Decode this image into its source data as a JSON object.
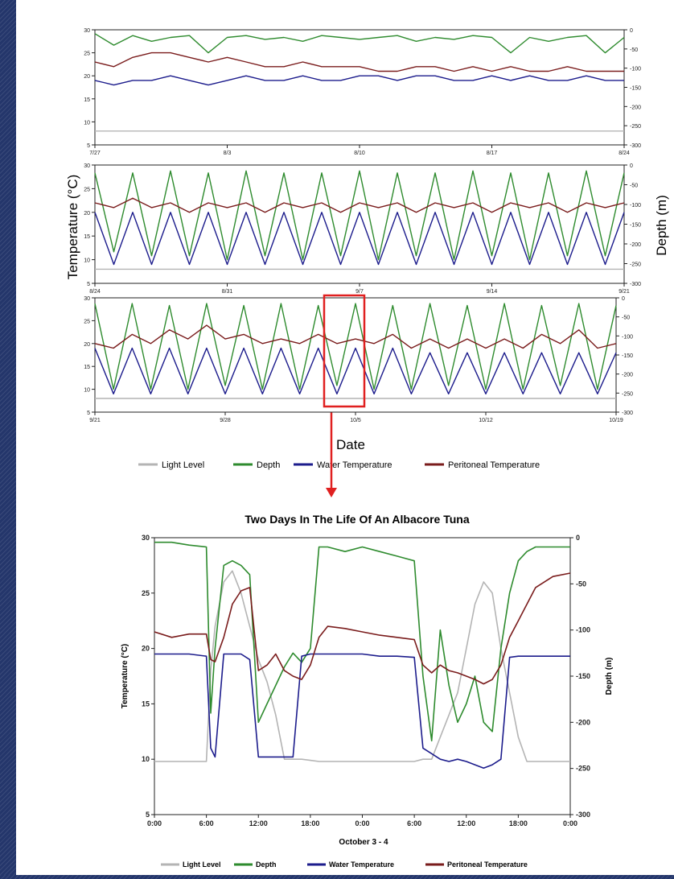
{
  "top_figure": {
    "y_left_label": "Temperature (°C)",
    "y_right_label": "Depth (m)",
    "x_label": "Date",
    "legend": [
      "Light Level",
      "Depth",
      "Water Temperature",
      "Peritoneal Temperature"
    ]
  },
  "bottom_figure": {
    "title": "Two Days In The Life Of An Albacore Tuna",
    "y_left_label": "Temperature (°C)",
    "y_right_label": "Depth (m)",
    "x_label": "October 3 - 4",
    "legend": [
      "Light Level",
      "Depth",
      "Water Temperature",
      "Peritoneal Temperature"
    ]
  },
  "colors": {
    "light": "#b4b4b4",
    "depth": "#2e8b2e",
    "water": "#1c1c8c",
    "peritoneal": "#7a1c1c",
    "highlight": "#e02020",
    "background": "#24366b"
  },
  "chart_data": [
    {
      "type": "line",
      "panel": 1,
      "x_ticks": [
        "7/27",
        "8/3",
        "8/10",
        "8/17",
        "8/24"
      ],
      "y_left_ticks": [
        5,
        10,
        15,
        20,
        25,
        30
      ],
      "y_right_ticks": [
        0,
        -50,
        -100,
        -150,
        -200,
        -250,
        -300
      ],
      "ylim_left": [
        5,
        30
      ],
      "ylim_right": [
        -300,
        0
      ],
      "series": [
        {
          "name": "Light Level",
          "values": [
            8,
            8,
            8,
            8,
            8,
            8,
            8,
            8,
            8,
            8,
            8,
            8,
            8,
            8,
            8,
            8,
            8,
            8,
            8,
            8,
            8,
            8,
            8,
            8,
            8,
            8,
            8,
            8,
            8
          ]
        },
        {
          "name": "Depth",
          "values": [
            -10,
            -40,
            -15,
            -30,
            -20,
            -15,
            -60,
            -20,
            -15,
            -25,
            -20,
            -30,
            -15,
            -20,
            -25,
            -20,
            -15,
            -30,
            -20,
            -25,
            -15,
            -20,
            -60,
            -20,
            -30,
            -20,
            -15,
            -60,
            -20
          ]
        },
        {
          "name": "Water Temperature",
          "values": [
            19,
            18,
            19,
            19,
            20,
            19,
            18,
            19,
            20,
            19,
            19,
            20,
            19,
            19,
            20,
            20,
            19,
            20,
            20,
            19,
            19,
            20,
            19,
            20,
            19,
            19,
            20,
            19,
            19
          ]
        },
        {
          "name": "Peritoneal Temperature",
          "values": [
            23,
            22,
            24,
            25,
            25,
            24,
            23,
            24,
            23,
            22,
            22,
            23,
            22,
            22,
            22,
            21,
            21,
            22,
            22,
            21,
            22,
            21,
            22,
            21,
            21,
            22,
            21,
            21,
            21
          ]
        }
      ]
    },
    {
      "type": "line",
      "panel": 2,
      "x_ticks": [
        "8/24",
        "8/31",
        "9/7",
        "9/14",
        "9/21"
      ],
      "y_left_ticks": [
        5,
        10,
        15,
        20,
        25,
        30
      ],
      "y_right_ticks": [
        0,
        -50,
        -100,
        -150,
        -200,
        -250,
        -300
      ],
      "ylim_left": [
        5,
        30
      ],
      "ylim_right": [
        -300,
        0
      ],
      "series": [
        {
          "name": "Light Level",
          "values": [
            8,
            8,
            8,
            8,
            8,
            8,
            8,
            8,
            8,
            8,
            8,
            8,
            8,
            8,
            8,
            8,
            8,
            8,
            8,
            8,
            8,
            8,
            8,
            8,
            8,
            8,
            8,
            8,
            8
          ]
        },
        {
          "name": "Depth",
          "values": [
            -20,
            -220,
            -20,
            -230,
            -15,
            -230,
            -20,
            -240,
            -15,
            -230,
            -20,
            -240,
            -20,
            -230,
            -15,
            -240,
            -20,
            -230,
            -20,
            -240,
            -15,
            -230,
            -20,
            -240,
            -20,
            -230,
            -15,
            -230,
            -20
          ]
        },
        {
          "name": "Water Temperature",
          "values": [
            20,
            9,
            20,
            9,
            20,
            9,
            20,
            9,
            20,
            9,
            20,
            9,
            20,
            9,
            20,
            9,
            20,
            9,
            20,
            9,
            20,
            9,
            20,
            9,
            20,
            9,
            20,
            9,
            20
          ]
        },
        {
          "name": "Peritoneal Temperature",
          "values": [
            22,
            21,
            23,
            21,
            22,
            20,
            22,
            21,
            22,
            20,
            22,
            21,
            22,
            20,
            22,
            21,
            22,
            20,
            22,
            21,
            22,
            20,
            22,
            21,
            22,
            20,
            22,
            21,
            22
          ]
        }
      ]
    },
    {
      "type": "line",
      "panel": 3,
      "x_ticks": [
        "9/21",
        "9/28",
        "10/5",
        "10/12",
        "10/19"
      ],
      "y_left_ticks": [
        5,
        10,
        15,
        20,
        25,
        30
      ],
      "y_right_ticks": [
        0,
        -50,
        -100,
        -150,
        -200,
        -250,
        -300
      ],
      "ylim_left": [
        5,
        30
      ],
      "ylim_right": [
        -300,
        0
      ],
      "series": [
        {
          "name": "Light Level",
          "values": [
            8,
            8,
            8,
            8,
            8,
            8,
            8,
            8,
            8,
            8,
            8,
            8,
            8,
            8,
            8,
            8,
            8,
            8,
            8,
            8,
            8,
            8,
            8,
            8,
            8,
            8,
            8,
            8,
            8
          ]
        },
        {
          "name": "Depth",
          "values": [
            -15,
            -240,
            -15,
            -240,
            -20,
            -240,
            -15,
            -230,
            -20,
            -240,
            -15,
            -240,
            -20,
            -230,
            -15,
            -240,
            -20,
            -240,
            -15,
            -230,
            -20,
            -240,
            -15,
            -240,
            -20,
            -230,
            -15,
            -240,
            -20
          ]
        },
        {
          "name": "Water Temperature",
          "values": [
            19,
            9,
            19,
            9,
            19,
            9,
            19,
            9,
            19,
            9,
            19,
            9,
            19,
            9,
            19,
            9,
            19,
            9,
            18,
            9,
            18,
            9,
            18,
            9,
            18,
            9,
            18,
            9,
            18
          ]
        },
        {
          "name": "Peritoneal Temperature",
          "values": [
            20,
            19,
            22,
            20,
            23,
            21,
            24,
            21,
            22,
            20,
            21,
            20,
            22,
            20,
            21,
            20,
            22,
            19,
            21,
            19,
            21,
            19,
            21,
            19,
            22,
            20,
            23,
            19,
            20
          ]
        }
      ]
    },
    {
      "type": "line",
      "panel": 4,
      "title": "Two Days In The Life Of An Albacore Tuna",
      "x_ticks": [
        "0:00",
        "6:00",
        "12:00",
        "18:00",
        "0:00",
        "6:00",
        "12:00",
        "18:00",
        "0:00"
      ],
      "x_hours": [
        0,
        2,
        4,
        6,
        6.5,
        7,
        8,
        9,
        10,
        11,
        12,
        13,
        14,
        15,
        16,
        17,
        18,
        19,
        20,
        22,
        24,
        26,
        28,
        30,
        31,
        32,
        33,
        34,
        35,
        36,
        37,
        38,
        39,
        40,
        41,
        42,
        43,
        44,
        46,
        48
      ],
      "y_left_ticks": [
        5,
        10,
        15,
        20,
        25,
        30
      ],
      "y_right_ticks": [
        0,
        -50,
        -100,
        -150,
        -200,
        -250,
        -300
      ],
      "ylim_left": [
        5,
        30
      ],
      "ylim_right": [
        -300,
        0
      ],
      "xlim": [
        0,
        48
      ],
      "series": [
        {
          "name": "Light Level",
          "values": [
            9.8,
            9.8,
            9.8,
            9.8,
            18,
            22,
            26,
            27,
            25,
            22,
            19,
            17,
            14,
            10,
            10,
            10,
            9.9,
            9.8,
            9.8,
            9.8,
            9.8,
            9.8,
            9.8,
            9.8,
            10,
            10,
            12,
            14,
            16,
            20,
            24,
            26,
            25,
            20,
            16,
            12,
            9.8,
            9.8,
            9.8,
            9.8
          ]
        },
        {
          "name": "Depth",
          "values": [
            -5,
            -5,
            -8,
            -10,
            -190,
            -120,
            -30,
            -25,
            -30,
            -40,
            -200,
            -180,
            -160,
            -140,
            -125,
            -135,
            -120,
            -10,
            -10,
            -15,
            -10,
            -15,
            -20,
            -25,
            -150,
            -220,
            -100,
            -160,
            -200,
            -180,
            -150,
            -200,
            -210,
            -120,
            -60,
            -25,
            -15,
            -10,
            -10,
            -10
          ]
        },
        {
          "name": "Water Temperature",
          "values": [
            19.5,
            19.5,
            19.5,
            19.3,
            11,
            10.2,
            19.5,
            19.5,
            19.5,
            19,
            10.2,
            10.2,
            10.2,
            10.2,
            10.2,
            19.3,
            19.5,
            19.5,
            19.5,
            19.5,
            19.5,
            19.3,
            19.3,
            19.2,
            11,
            10.5,
            10,
            9.8,
            10,
            9.8,
            9.5,
            9.2,
            9.5,
            10,
            19.2,
            19.3,
            19.3,
            19.3,
            19.3,
            19.3
          ]
        },
        {
          "name": "Peritoneal Temperature",
          "values": [
            21.5,
            21,
            21.3,
            21.3,
            19,
            18.8,
            21,
            24,
            25.2,
            25.5,
            18,
            18.5,
            19.5,
            18,
            17.5,
            17.2,
            18.5,
            21,
            22,
            21.8,
            21.5,
            21.2,
            21,
            20.8,
            18.5,
            17.8,
            18.5,
            18,
            17.8,
            17.5,
            17.2,
            16.8,
            17.2,
            18.5,
            21,
            22.5,
            24,
            25.5,
            26.5,
            26.8
          ]
        }
      ]
    }
  ]
}
